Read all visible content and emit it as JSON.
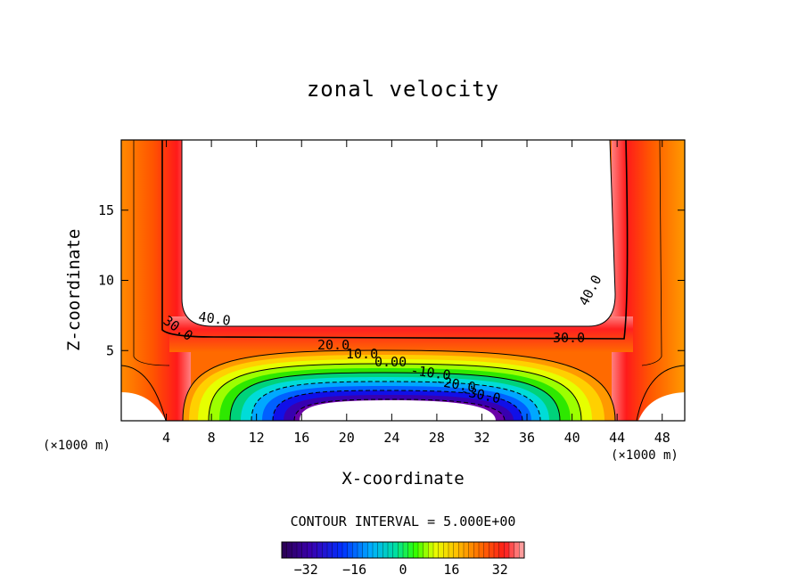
{
  "chart_data": {
    "type": "heatmap",
    "title": "zonal velocity",
    "xlabel": "X-coordinate",
    "ylabel": "Z-coordinate",
    "x_unit_label": "(×1000 m)",
    "x_unit_label_left": "(×1000 m)",
    "xlim": [
      0,
      50
    ],
    "ylim": [
      0,
      20
    ],
    "x_ticks": [
      4,
      8,
      12,
      16,
      20,
      24,
      28,
      32,
      36,
      40,
      44,
      48
    ],
    "y_ticks": [
      5,
      10,
      15
    ],
    "contour_interval_text": "CONTOUR INTERVAL = 5.000E+00",
    "contour_labels": [
      "40.0",
      "30.0",
      "20.0",
      "10.0",
      "0.00",
      "-10.0",
      "-20.0",
      "-30.0",
      "30.0",
      "40.0"
    ],
    "colorbar": {
      "min": -40,
      "max": 40,
      "ticks": [
        -32,
        -16,
        0,
        16,
        32
      ],
      "tick_labels": [
        "−32",
        "−16",
        "0",
        "16",
        "32"
      ]
    }
  }
}
